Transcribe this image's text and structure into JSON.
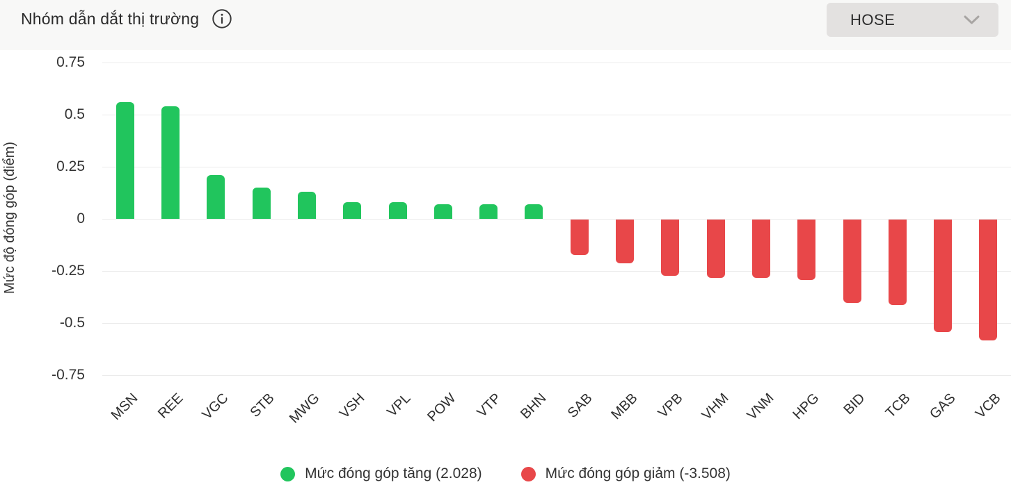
{
  "header": {
    "title": "Nhóm dẫn dắt thị trường",
    "exchange_selector": {
      "value": "HOSE"
    }
  },
  "chart_data": {
    "type": "bar",
    "title": "Nhóm dẫn dắt thị trường",
    "xlabel": "",
    "ylabel": "Mức độ đóng góp (điểm)",
    "ylim": [
      -0.75,
      0.75
    ],
    "grid": true,
    "yticks": [
      {
        "value": 0.75,
        "label": "0.75"
      },
      {
        "value": 0.5,
        "label": "0.5"
      },
      {
        "value": 0.25,
        "label": "0.25"
      },
      {
        "value": 0,
        "label": "0"
      },
      {
        "value": -0.25,
        "label": "-0.25"
      },
      {
        "value": -0.5,
        "label": "-0.5"
      },
      {
        "value": -0.75,
        "label": "-0.75"
      }
    ],
    "categories": [
      "MSN",
      "REE",
      "VGC",
      "STB",
      "MWG",
      "VSH",
      "VPL",
      "POW",
      "VTP",
      "BHN",
      "SAB",
      "MBB",
      "VPB",
      "VHM",
      "VNM",
      "HPG",
      "BID",
      "TCB",
      "GAS",
      "VCB"
    ],
    "values": [
      0.56,
      0.54,
      0.21,
      0.15,
      0.13,
      0.08,
      0.08,
      0.07,
      0.07,
      0.07,
      -0.17,
      -0.21,
      -0.27,
      -0.28,
      -0.28,
      -0.29,
      -0.4,
      -0.41,
      -0.54,
      -0.58
    ],
    "colors": {
      "positive": "#21c55d",
      "negative": "#e84749",
      "grid": "#ebebeb"
    },
    "legend_position": "bottom",
    "legend": [
      {
        "label": "Mức đóng góp tăng (2.028)",
        "color": "#21c55d",
        "series": "increase"
      },
      {
        "label": "Mức đóng góp giảm (-3.508)",
        "color": "#e84749",
        "series": "decrease"
      }
    ]
  }
}
